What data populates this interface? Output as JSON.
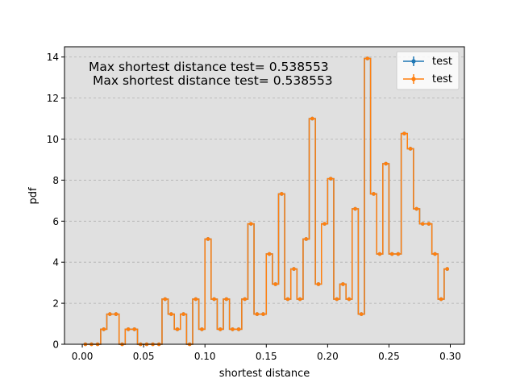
{
  "chart_data": {
    "type": "line",
    "title": "",
    "xlabel": "shortest distance",
    "ylabel": "pdf",
    "xlim": [
      -0.0145,
      0.3115
    ],
    "ylim": [
      0,
      14.5
    ],
    "grid": "horizontal-dashed",
    "legend_position": "top-right",
    "xticks": [
      0.0,
      0.05,
      0.1,
      0.15,
      0.2,
      0.25,
      0.3
    ],
    "xtick_labels": [
      "0.00",
      "0.05",
      "0.10",
      "0.15",
      "0.20",
      "0.25",
      "0.30"
    ],
    "yticks": [
      0,
      2,
      4,
      6,
      8,
      10,
      12,
      14
    ],
    "ytick_labels": [
      "0",
      "2",
      "4",
      "6",
      "8",
      "10",
      "12",
      "14"
    ],
    "annotations": [
      "Max shortest distance test= 0.538553",
      "Max shortest distance test= 0.538553"
    ],
    "x": [
      0.0025,
      0.0075,
      0.0125,
      0.0175,
      0.0225,
      0.0275,
      0.0325,
      0.0375,
      0.0425,
      0.0475,
      0.0525,
      0.0575,
      0.0625,
      0.0675,
      0.0725,
      0.0775,
      0.0825,
      0.0875,
      0.0925,
      0.0975,
      0.1025,
      0.1075,
      0.1125,
      0.1175,
      0.1225,
      0.1275,
      0.1325,
      0.1375,
      0.1425,
      0.1475,
      0.1525,
      0.1575,
      0.1625,
      0.1675,
      0.1725,
      0.1775,
      0.1825,
      0.1875,
      0.1925,
      0.1975,
      0.2025,
      0.2075,
      0.2125,
      0.2175,
      0.2225,
      0.2275,
      0.2325,
      0.2375,
      0.2425,
      0.2475,
      0.2525,
      0.2575,
      0.2625,
      0.2675,
      0.2725,
      0.2775,
      0.2825,
      0.2875,
      0.2925,
      0.2975
    ],
    "series": [
      {
        "name": "test",
        "color": "#1f77b4",
        "values": [
          0,
          0,
          0,
          0.73,
          1.47,
          1.47,
          0,
          0.73,
          0.73,
          0,
          0,
          0,
          0,
          2.2,
          1.47,
          0.73,
          1.47,
          0,
          2.2,
          0.73,
          5.13,
          2.2,
          0.73,
          2.2,
          0.73,
          0.73,
          2.2,
          5.87,
          1.47,
          1.47,
          4.4,
          2.93,
          7.33,
          2.2,
          3.67,
          2.2,
          5.13,
          11.0,
          2.93,
          5.87,
          8.07,
          2.2,
          2.93,
          2.2,
          6.6,
          1.47,
          13.93,
          7.33,
          4.4,
          8.8,
          4.4,
          4.4,
          10.27,
          9.53,
          6.6,
          5.87,
          5.87,
          4.4,
          2.2,
          3.67
        ]
      },
      {
        "name": "test",
        "color": "#ff7f0e",
        "values": [
          0,
          0,
          0,
          0.73,
          1.47,
          1.47,
          0,
          0.73,
          0.73,
          0,
          0,
          0,
          0,
          2.2,
          1.47,
          0.73,
          1.47,
          0,
          2.2,
          0.73,
          5.13,
          2.2,
          0.73,
          2.2,
          0.73,
          0.73,
          2.2,
          5.87,
          1.47,
          1.47,
          4.4,
          2.93,
          7.33,
          2.2,
          3.67,
          2.2,
          5.13,
          11.0,
          2.93,
          5.87,
          8.07,
          2.2,
          2.93,
          2.2,
          6.6,
          1.47,
          13.93,
          7.33,
          4.4,
          8.8,
          4.4,
          4.4,
          10.27,
          9.53,
          6.6,
          5.87,
          5.87,
          4.4,
          2.2,
          3.67
        ]
      }
    ]
  }
}
